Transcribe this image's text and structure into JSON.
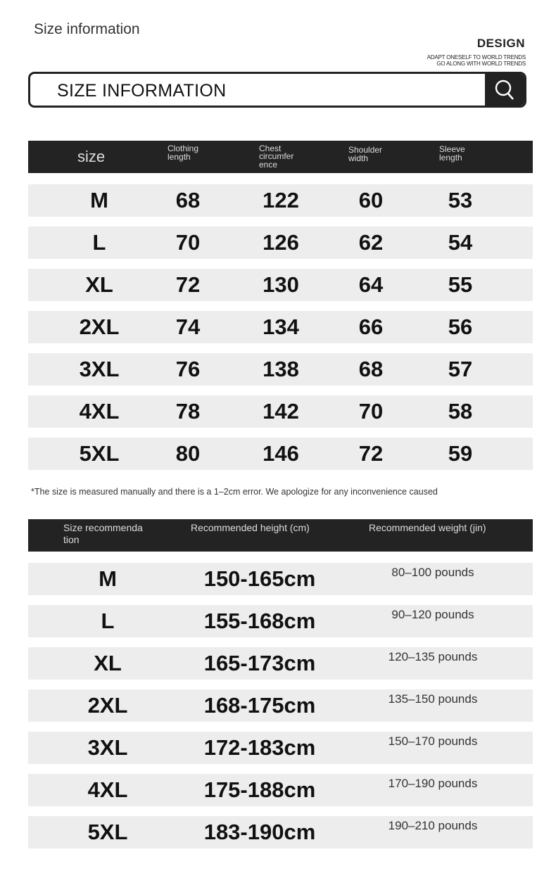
{
  "header": {
    "title": "Size information",
    "design": "DESIGN",
    "tagline1": "ADAPT ONESELF TO WORLD TRENDS",
    "tagline2": "GO ALONG WITH WORLD TRENDS"
  },
  "search": {
    "text": "SIZE INFORMATION",
    "icon": "search-icon"
  },
  "size_table": {
    "columns": [
      "size",
      "Clothing length",
      "Chest circumfer ence",
      "Shoulder width",
      "Sleeve length"
    ],
    "rows": [
      [
        "M",
        "68",
        "122",
        "60",
        "53"
      ],
      [
        "L",
        "70",
        "126",
        "62",
        "54"
      ],
      [
        "XL",
        "72",
        "130",
        "64",
        "55"
      ],
      [
        "2XL",
        "74",
        "134",
        "66",
        "56"
      ],
      [
        "3XL",
        "76",
        "138",
        "68",
        "57"
      ],
      [
        "4XL",
        "78",
        "142",
        "70",
        "58"
      ],
      [
        "5XL",
        "80",
        "146",
        "72",
        "59"
      ]
    ]
  },
  "note": "*The size is measured manually and there is a 1–2cm error. We apologize for any inconvenience caused",
  "rec_table": {
    "columns": [
      "Size recommenda tion",
      "Recommended height (cm)",
      "Recommended weight (jin)"
    ],
    "rows": [
      [
        "M",
        "150-165cm",
        "80–100 pounds"
      ],
      [
        "L",
        "155-168cm",
        "90–120 pounds"
      ],
      [
        "XL",
        "165-173cm",
        "120–135 pounds"
      ],
      [
        "2XL",
        "168-175cm",
        "135–150 pounds"
      ],
      [
        "3XL",
        "172-183cm",
        "150–170 pounds"
      ],
      [
        "4XL",
        "175-188cm",
        "170–190 pounds"
      ],
      [
        "5XL",
        "183-190cm",
        "190–210 pounds"
      ]
    ]
  },
  "colors": {
    "header_bg": "#232323",
    "row_bg": "#ededed"
  }
}
